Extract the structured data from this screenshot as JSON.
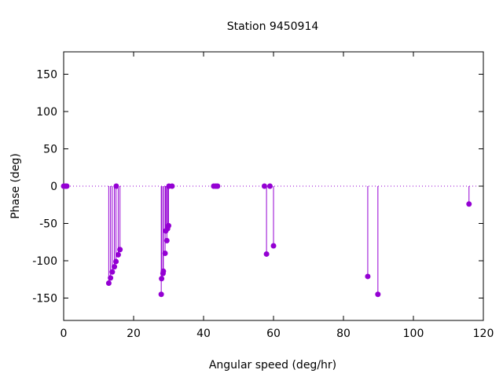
{
  "chart_data": {
    "type": "scatter",
    "style": "impulses-with-points",
    "title": "Station 9450914",
    "xlabel": "Angular speed (deg/hr)",
    "ylabel": "Phase (deg)",
    "xlim": [
      0,
      120
    ],
    "ylim": [
      -180,
      180
    ],
    "xticks": [
      0,
      20,
      40,
      60,
      80,
      100,
      120
    ],
    "yticks": [
      -150,
      -100,
      -50,
      0,
      50,
      100,
      150
    ],
    "zero_line": true,
    "grid": false,
    "color": "#9400d3",
    "points": [
      {
        "x": 0.0,
        "y": 0
      },
      {
        "x": 0.5,
        "y": 0
      },
      {
        "x": 0.9,
        "y": 0
      },
      {
        "x": 12.9,
        "y": -130
      },
      {
        "x": 13.4,
        "y": -123
      },
      {
        "x": 13.9,
        "y": -115
      },
      {
        "x": 14.5,
        "y": -108
      },
      {
        "x": 14.96,
        "y": -101
      },
      {
        "x": 15.04,
        "y": 0
      },
      {
        "x": 15.6,
        "y": -92
      },
      {
        "x": 16.1,
        "y": -85
      },
      {
        "x": 27.9,
        "y": -145
      },
      {
        "x": 28.0,
        "y": -124
      },
      {
        "x": 28.4,
        "y": -117
      },
      {
        "x": 28.5,
        "y": -114
      },
      {
        "x": 29.0,
        "y": -90
      },
      {
        "x": 29.2,
        "y": -60
      },
      {
        "x": 29.5,
        "y": -73
      },
      {
        "x": 29.7,
        "y": -57
      },
      {
        "x": 30.0,
        "y": -53
      },
      {
        "x": 30.1,
        "y": 0
      },
      {
        "x": 31.0,
        "y": 0
      },
      {
        "x": 42.9,
        "y": 0
      },
      {
        "x": 43.5,
        "y": 0
      },
      {
        "x": 44.0,
        "y": 0
      },
      {
        "x": 57.4,
        "y": 0
      },
      {
        "x": 58.0,
        "y": -91
      },
      {
        "x": 58.98,
        "y": 0
      },
      {
        "x": 60.0,
        "y": -80
      },
      {
        "x": 86.95,
        "y": -121
      },
      {
        "x": 89.85,
        "y": -145
      },
      {
        "x": 115.9,
        "y": -24
      }
    ]
  }
}
